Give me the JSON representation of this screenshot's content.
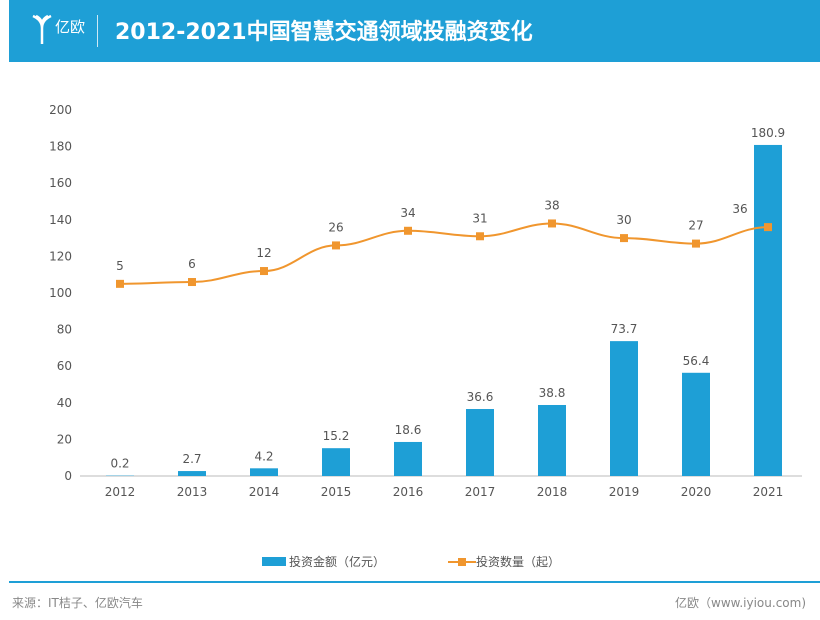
{
  "header": {
    "logo_text": "亿欧",
    "title": "2012-2021中国智慧交通领域投融资变化"
  },
  "chart_data": {
    "type": "bar+line",
    "title": "2012-2021中国智慧交通领域投融资变化",
    "categories": [
      "2012",
      "2013",
      "2014",
      "2015",
      "2016",
      "2017",
      "2018",
      "2019",
      "2020",
      "2021"
    ],
    "series": [
      {
        "name": "投资金额（亿元）",
        "type": "bar",
        "values": [
          0.2,
          2.7,
          4.2,
          15.2,
          18.6,
          36.6,
          38.8,
          73.7,
          56.4,
          180.9
        ],
        "color": "#1e9fd6"
      },
      {
        "name": "投资数量（起）",
        "type": "line",
        "values": [
          5,
          6,
          12,
          26,
          34,
          31,
          38,
          30,
          27,
          36
        ],
        "color": "#f0962e"
      }
    ],
    "yticks": [
      "0",
      "20",
      "40",
      "60",
      "80",
      "100",
      "120",
      "140",
      "160",
      "180",
      "200"
    ],
    "ylim": [
      0,
      200
    ],
    "grid": false,
    "legend": "bottom"
  },
  "footer": {
    "source": "来源：IT桔子、亿欧汽车",
    "site": "亿欧（www.iyiou.com)"
  }
}
